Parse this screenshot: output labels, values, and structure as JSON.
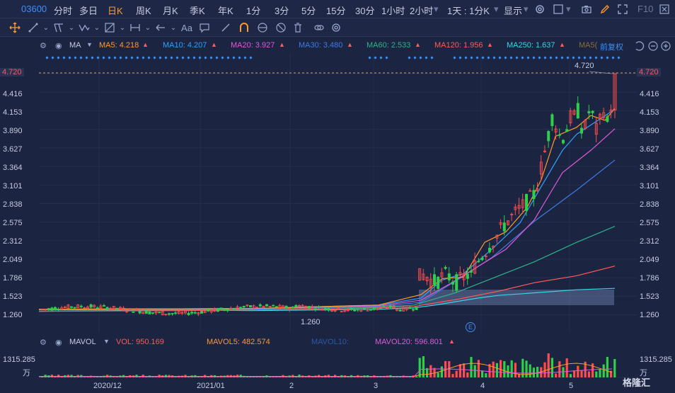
{
  "topbar": {
    "code": "03600",
    "tabs": [
      "分时",
      "多日",
      "日K",
      "周K",
      "月K",
      "季K",
      "年K",
      "1分",
      "3分",
      "5分",
      "15分",
      "30分",
      "1小时",
      "2小时"
    ],
    "active_tab": "日K",
    "period_select": "1天 : 1分K",
    "display": "显示",
    "f10": "F10"
  },
  "toolbar": {
    "text_tool": "Aa"
  },
  "ma": {
    "label": "MA",
    "ma5": "MA5: 4.218",
    "ma10": "MA10: 4.207",
    "ma20": "MA20: 3.927",
    "ma30": "MA30: 3.480",
    "ma60": "MA60: 2.533",
    "ma120": "MA120: 1.956",
    "ma250": "MA250: 1.637",
    "ma_cut": "MA5(",
    "fq": "前复权",
    "colors": {
      "ma5": "#ff9a2e",
      "ma10": "#2fa3ff",
      "ma20": "#e05ad8",
      "ma30": "#3f7be6",
      "ma60": "#2fb38a",
      "ma120": "#ff5a5a",
      "ma250": "#37d6e6"
    }
  },
  "price": {
    "y_ticks": [
      "4.720",
      "4.416",
      "4.153",
      "3.890",
      "3.627",
      "3.364",
      "3.101",
      "2.838",
      "2.575",
      "2.312",
      "2.049",
      "1.786",
      "1.523",
      "1.260"
    ],
    "last": "4.720",
    "high_annotation": "4.720",
    "low_annotation": "1.260"
  },
  "volume": {
    "label": "MAVOL",
    "vol": "VOL: 950.169",
    "mavol5": "MAVOL5: 482.574",
    "mavol10": "MAVOL10:",
    "mavol20": "MAVOL20: 596.801",
    "max_tick": "1315.285",
    "unit": "万"
  },
  "x_labels": [
    "2020/12",
    "2021/01",
    "2",
    "3",
    "4",
    "5"
  ],
  "watermark": "格隆汇"
}
